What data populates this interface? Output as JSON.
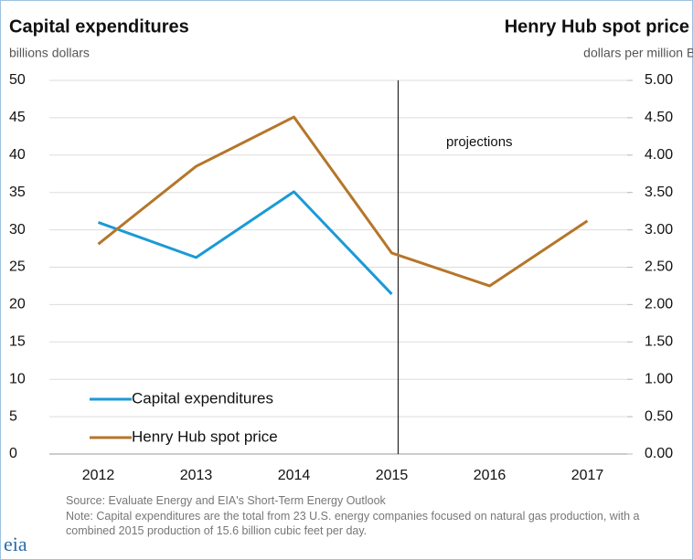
{
  "chart_data": {
    "type": "line",
    "title": "Capital expenditures",
    "y_label": "billions dollars",
    "y2_title": "Henry Hub spot price",
    "y2_label": "dollars per million Btu",
    "annotation": "projections",
    "source": "Source: Evaluate Energy and EIA's Short-Term Energy Outlook",
    "note": "Note: Capital expenditures are the total from 23 U.S. energy companies focused on natural gas production, with a combined 2015 production of 15.6 billion cubic feet per day.",
    "logo": "eia",
    "categories": [
      "2012",
      "2013",
      "2014",
      "2015",
      "2016",
      "2017"
    ],
    "series": [
      {
        "name": "Capital expenditures",
        "color": "#1a9ad6",
        "values": [
          31.0,
          26.3,
          35.1,
          21.4,
          null,
          null
        ]
      },
      {
        "name": "Henry Hub spot price",
        "color": "#b5762a",
        "axis": "y2",
        "values": [
          2.81,
          3.85,
          4.51,
          2.69,
          2.25,
          3.12
        ]
      }
    ],
    "ylim": [
      0,
      50
    ],
    "yticks": [
      0,
      5,
      10,
      15,
      20,
      25,
      30,
      35,
      40,
      45,
      50
    ],
    "y2lim": [
      0,
      5
    ],
    "y2ticks": [
      {
        "value": 0,
        "label": "0.00"
      },
      {
        "value": 0.5,
        "label": "0.50"
      },
      {
        "value": 1,
        "label": "1.00"
      },
      {
        "value": 1.5,
        "label": "1.50"
      },
      {
        "value": 2,
        "label": "2.00"
      },
      {
        "value": 2.5,
        "label": "2.50"
      },
      {
        "value": 3,
        "label": "3.00"
      },
      {
        "value": 3.5,
        "label": "3.50"
      },
      {
        "value": 4,
        "label": "4.00"
      },
      {
        "value": 4.5,
        "label": "4.50"
      },
      {
        "value": 5,
        "label": "5.00"
      }
    ],
    "grid": true,
    "legend": "lower left"
  }
}
